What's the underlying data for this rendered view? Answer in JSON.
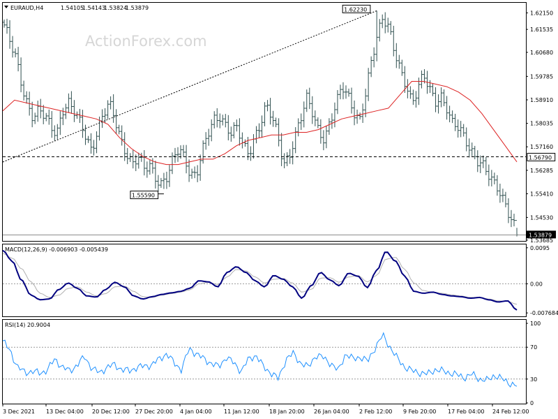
{
  "header": {
    "symbol": "EURAUD,H4",
    "open": "1.54105",
    "high": "1.54143",
    "low": "1.53824",
    "close": "1.53879"
  },
  "watermark": "ActionForex.com",
  "colors": {
    "bars": "#2f4f4f",
    "ma": "#dd2222",
    "macd": "#000080",
    "signal": "#b0b0b0",
    "rsi": "#1e90ff",
    "guide": "#000000"
  },
  "chart_data": [
    {
      "type": "bar",
      "panel": "price",
      "title": "EURAUD,H4 1.54105 1.54143 1.53824 1.53879",
      "y_ticks": [
        "1.62150",
        "1.61535",
        "1.60680",
        "1.59785",
        "1.58910",
        "1.58035",
        "1.57160",
        "1.56285",
        "1.55410",
        "1.54530",
        "1.53685"
      ],
      "ylim": [
        1.5368,
        1.625
      ],
      "annotations": [
        {
          "label": "1.62230",
          "kind": "high"
        },
        {
          "label": "1.55590",
          "kind": "low"
        },
        {
          "label": "1.56790",
          "kind": "horizontal-level"
        },
        {
          "label": "1.53879",
          "kind": "last-price"
        }
      ],
      "ohlc_path": [
        1.617,
        1.61,
        1.604,
        1.595,
        1.588,
        1.583,
        1.585,
        1.582,
        1.579,
        1.577,
        1.586,
        1.588,
        1.584,
        1.58,
        1.576,
        1.571,
        1.578,
        1.583,
        1.587,
        1.582,
        1.575,
        1.57,
        1.565,
        1.567,
        1.563,
        1.565,
        1.561,
        1.558,
        1.56,
        1.566,
        1.571,
        1.568,
        1.562,
        1.561,
        1.569,
        1.576,
        1.582,
        1.584,
        1.58,
        1.576,
        1.578,
        1.572,
        1.57,
        1.576,
        1.58,
        1.586,
        1.582,
        1.576,
        1.566,
        1.569,
        1.575,
        1.582,
        1.59,
        1.585,
        1.578,
        1.574,
        1.58,
        1.587,
        1.595,
        1.592,
        1.585,
        1.58,
        1.59,
        1.603,
        1.614,
        1.621,
        1.616,
        1.606,
        1.599,
        1.595,
        1.589,
        1.594,
        1.598,
        1.592,
        1.588,
        1.591,
        1.587,
        1.58,
        1.578,
        1.574,
        1.571,
        1.568,
        1.566,
        1.561,
        1.557,
        1.555,
        1.551,
        1.546,
        1.54
      ],
      "moving_average_path": [
        1.585,
        1.589,
        1.588,
        1.587,
        1.586,
        1.585,
        1.584,
        1.583,
        1.582,
        1.58,
        1.575,
        1.571,
        1.568,
        1.566,
        1.565,
        1.565,
        1.566,
        1.567,
        1.567,
        1.569,
        1.572,
        1.574,
        1.575,
        1.576,
        1.576,
        1.577,
        1.577,
        1.578,
        1.58,
        1.582,
        1.583,
        1.584,
        1.585,
        1.586,
        1.591,
        1.596,
        1.596,
        1.595,
        1.594,
        1.592,
        1.589,
        1.584,
        1.578,
        1.572,
        1.566
      ]
    },
    {
      "type": "line",
      "panel": "macd",
      "title": "MACD(12,26,9) -0.006903 -0.005439",
      "y_ticks": [
        "0.0095",
        "0.00",
        "-0.007684"
      ],
      "ylim": [
        -0.0084,
        0.0102
      ],
      "series": [
        {
          "name": "MACD(12,26,9)",
          "values": [
            0.0088,
            0.006,
            0.001,
            -0.003,
            -0.0042,
            -0.004,
            -0.0015,
            0.0002,
            -0.0012,
            -0.0032,
            -0.0035,
            -0.0015,
            0.0004,
            -0.0008,
            -0.0032,
            -0.004,
            -0.0034,
            -0.0028,
            -0.0024,
            -0.002,
            -0.0012,
            0.0008,
            0.0005,
            -0.0008,
            0.003,
            0.0045,
            0.003,
            0.0008,
            -0.0008,
            0.0022,
            0.0012,
            -0.0008,
            -0.0038,
            -0.0005,
            0.003,
            0.001,
            -0.0005,
            0.0028,
            0.002,
            -0.001,
            0.0035,
            0.0085,
            0.006,
            0.002,
            -0.002,
            -0.0025,
            -0.0022,
            -0.0028,
            -0.0032,
            -0.0034,
            -0.0038,
            -0.0036,
            -0.0042,
            -0.0048,
            -0.0045,
            -0.0069
          ]
        },
        {
          "name": "Signal",
          "values": [
            0.008,
            0.0068,
            0.004,
            0.0005,
            -0.0025,
            -0.0036,
            -0.003,
            -0.0012,
            -0.0008,
            -0.0022,
            -0.0032,
            -0.0026,
            -0.0008,
            -0.0006,
            -0.002,
            -0.0034,
            -0.0036,
            -0.003,
            -0.0026,
            -0.0022,
            -0.0016,
            0.0,
            0.0004,
            -0.0002,
            0.0018,
            0.0038,
            0.0034,
            0.0018,
            0.0002,
            0.0012,
            0.0014,
            0.0002,
            -0.0022,
            -0.0015,
            0.0015,
            0.0016,
            0.0004,
            0.0018,
            0.0022,
            0.0005,
            0.0022,
            0.0065,
            0.007,
            0.0038,
            0.0002,
            -0.0018,
            -0.0022,
            -0.0025,
            -0.0029,
            -0.0032,
            -0.0036,
            -0.0036,
            -0.004,
            -0.0045,
            -0.0046,
            -0.0054
          ]
        }
      ]
    },
    {
      "type": "line",
      "panel": "rsi",
      "title": "RSI(14) 20.9004",
      "y_ticks": [
        "100",
        "70",
        "30",
        "0"
      ],
      "ylim": [
        0,
        100
      ],
      "series": [
        {
          "name": "RSI(14)",
          "values": [
            78,
            65,
            45,
            38,
            40,
            37,
            42,
            55,
            45,
            40,
            48,
            58,
            43,
            38,
            45,
            48,
            42,
            40,
            45,
            46,
            48,
            55,
            62,
            50,
            42,
            68,
            62,
            55,
            50,
            45,
            58,
            50,
            40,
            55,
            60,
            45,
            38,
            30,
            55,
            62,
            50,
            45,
            60,
            57,
            50,
            40,
            62,
            55,
            58,
            52,
            70,
            85,
            70,
            55,
            45,
            40,
            38,
            36,
            42,
            40,
            38,
            35,
            32,
            36,
            30,
            28,
            35,
            30,
            25,
            20.9
          ]
        }
      ]
    }
  ],
  "x_axis": {
    "labels": [
      "3 Dec 2021",
      "13 Dec 04:00",
      "20 Dec 12:00",
      "27 Dec 20:00",
      "4 Jan 04:00",
      "11 Jan 12:00",
      "18 Jan 20:00",
      "26 Jan 04:00",
      "2 Feb 12:00",
      "9 Feb 20:00",
      "17 Feb 04:00",
      "24 Feb 12:00"
    ]
  }
}
